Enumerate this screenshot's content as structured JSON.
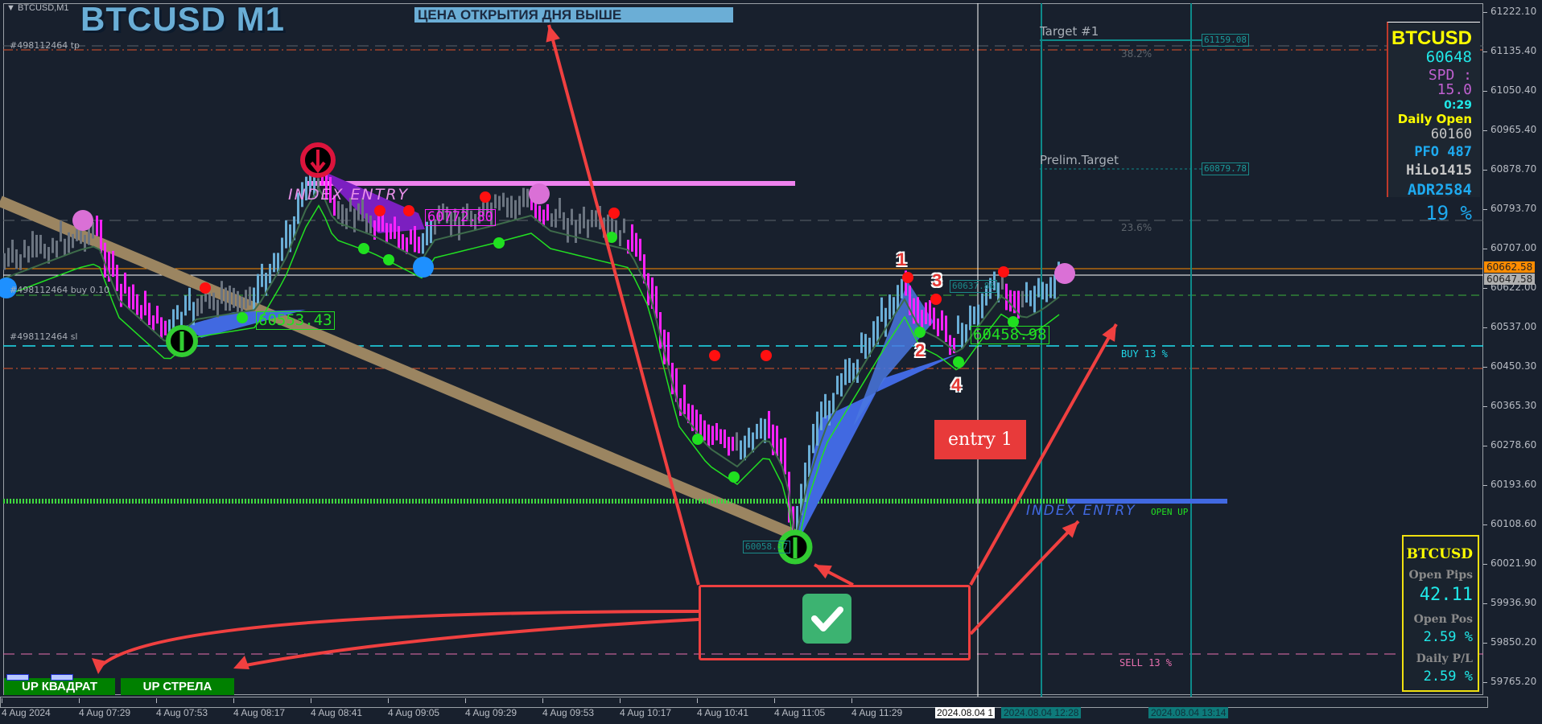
{
  "window": {
    "symbol_label": "BTCUSD,M1",
    "title": "BTCUSD M1",
    "banner": "ЦЕНА ОТКРЫТИЯ ДНЯ ВЫШЕ"
  },
  "trade_lines": {
    "tp": "#498112464 tp",
    "buy": "#498112464 buy 0.10",
    "sl": "#498112464 sl"
  },
  "price_axis": {
    "ticks": [
      "61222.10",
      "61135.40",
      "61050.40",
      "60965.40",
      "60878.70",
      "60793.70",
      "60707.00",
      "60622.00",
      "60537.00",
      "60450.30",
      "60365.30",
      "60278.60",
      "60193.60",
      "60108.60",
      "60021.90",
      "59936.90",
      "59850.20",
      "59765.20"
    ],
    "ask_label": "60662.58",
    "bid_label": "60647.58",
    "ask_color": "#ff8c00",
    "bid_color": "#b0b0b0"
  },
  "time_axis": {
    "labels": [
      "4 Aug 2024",
      "4 Aug 07:29",
      "4 Aug 07:53",
      "4 Aug 08:17",
      "4 Aug 08:41",
      "4 Aug 09:05",
      "4 Aug 09:29",
      "4 Aug 09:53",
      "4 Aug 10:17",
      "4 Aug 10:41",
      "4 Aug 11:05",
      "4 Aug 11:29"
    ],
    "cursor_label": "2024.08.04 1",
    "marker1": "2024.08.04 12:28",
    "marker2": "2024.08.04 13:14"
  },
  "levels": {
    "target1": "Target #1",
    "target1_price": "61159.08",
    "prelim": "Prelim.Target",
    "prelim_price": "60879.78",
    "fib382": "38.2%",
    "fib236": "23.6%",
    "buy_pct": "BUY 13 %",
    "sell_pct": "SELL 13 %",
    "open_up": "OPEN UP"
  },
  "annotations": {
    "index_entry_1": "INDEX ENTRY",
    "index_entry_2": "INDEX ENTRY",
    "p1": "60553.43",
    "p2": "60772.80",
    "p3": "60458.98",
    "p4": "60637.86",
    "p5": "60058.37",
    "n1": "1",
    "n2": "2",
    "n3": "3",
    "n4": "4",
    "entry": "entry 1"
  },
  "info_panel": {
    "symbol": "BTCUSD",
    "price": "60648",
    "spread": "SPD : 15.0",
    "timer": "0:29",
    "daily_open_label": "Daily Open",
    "daily_open": "60160",
    "pfo_label": "PFO",
    "pfo": "487",
    "hilo_label": "HiLo",
    "hilo": "1415",
    "adr_label": "ADR",
    "adr": "2584",
    "pct": "19 %"
  },
  "pl_panel": {
    "symbol": "BTCUSD",
    "open_pips_label": "Open Pips",
    "open_pips": "42.11",
    "open_pos_label": "Open Pos",
    "open_pos": "2.59 %",
    "daily_pl_label": "Daily P/L",
    "daily_pl": "2.59 %"
  },
  "buttons": {
    "up_square": "UP КВАДРАТ",
    "up_arrow": "UP СТРЕЛА"
  },
  "colors": {
    "bull": "#6aaed6",
    "bear": "#ff22ff",
    "neutral": "#6b7480",
    "annotation_red": "#f04040",
    "check_green": "#3cb371"
  }
}
